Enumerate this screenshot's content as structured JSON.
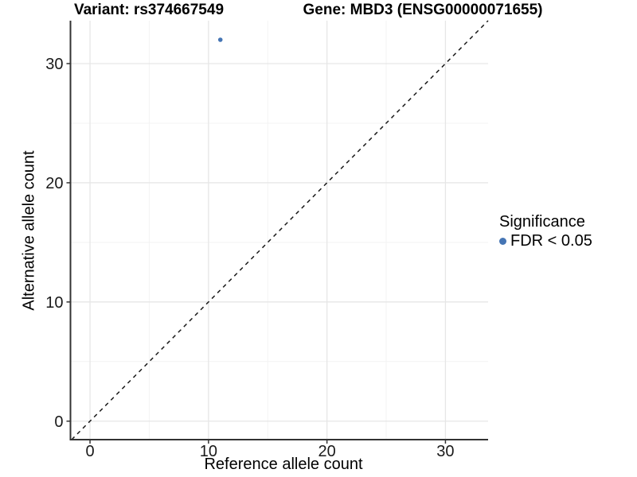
{
  "figure": {
    "title_left": "Variant: rs374667549",
    "title_right": "Gene: MBD3 (ENSG00000071655)"
  },
  "chart_data": {
    "type": "scatter",
    "title_left": "Variant: rs374667549",
    "title_right": "Gene: MBD3 (ENSG00000071655)",
    "xlabel": "Reference allele count",
    "ylabel": "Alternative allele count",
    "xlim": [
      -1.65,
      33.6
    ],
    "ylim": [
      -1.55,
      33.6
    ],
    "x_ticks": [
      0,
      10,
      20,
      30
    ],
    "y_ticks": [
      0,
      10,
      20,
      30
    ],
    "x_minor_ticks": [
      5,
      15,
      25
    ],
    "y_minor_ticks": [
      5,
      15,
      25
    ],
    "grid": "major_and_minor",
    "legend_position": "right",
    "points": [
      {
        "x": 11,
        "y": 32,
        "series": "FDR < 0.05"
      }
    ],
    "reference_line": {
      "slope": 1,
      "intercept": 0,
      "style": "dashed",
      "color": "#1a1a1a"
    },
    "legend": {
      "title": "Significance",
      "items": [
        {
          "label": "FDR < 0.05",
          "color": "#4575b4"
        }
      ]
    },
    "colors": {
      "point": "#4575b4",
      "grid_major": "#e6e6e6",
      "grid_minor": "#f3f3f3",
      "axis_line": "#333333",
      "tick": "#333333",
      "tick_label": "#1a1a1a",
      "background": "#ffffff"
    }
  }
}
